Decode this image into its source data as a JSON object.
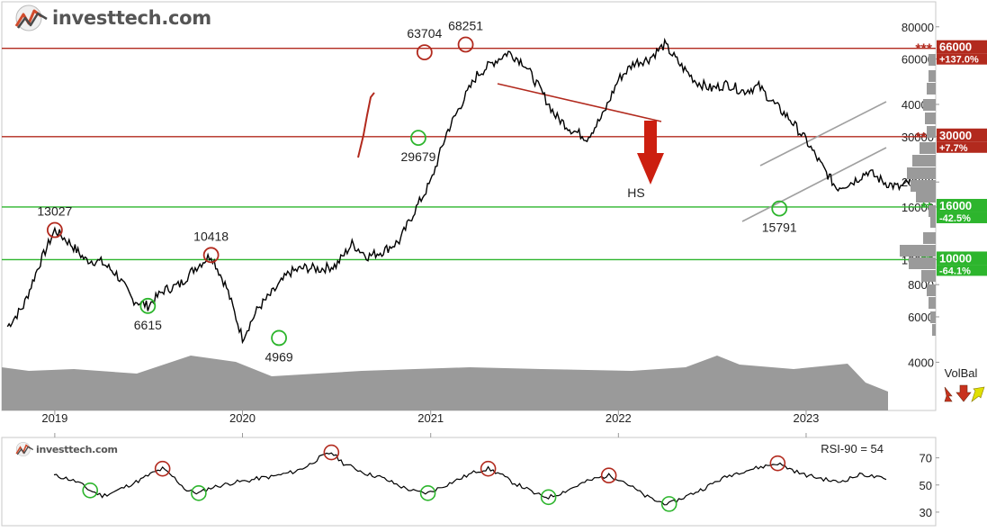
{
  "brand": {
    "name": "investtech.com",
    "name_part1": "invest",
    "name_part2": "tech",
    "name_part3": ".com"
  },
  "colors": {
    "price_line": "#000000",
    "resistance": "#b22a1e",
    "support": "#2db52d",
    "trend_channel": "#a0a0a0",
    "volume_fill": "#9a9a9a",
    "volbal_up": "#e0e000",
    "volbal_down": "#c8321e",
    "hs_arrow": "#cc1f10"
  },
  "chart_data": [
    {
      "type": "line",
      "scale": "log",
      "yticks": [
        "80000",
        "60000",
        "40000",
        "30000",
        "20000",
        "16000",
        "10000",
        "8000",
        "6000",
        "4000"
      ],
      "ylim": [
        2600,
        100000
      ],
      "xticks": [
        "2019",
        "2020",
        "2021",
        "2022",
        "2023"
      ],
      "price_series": {
        "dates": [
          "2018-10-01",
          "2018-11-01",
          "2018-12-01",
          "2019-01-01",
          "2019-02-01",
          "2019-03-01",
          "2019-04-01",
          "2019-05-01",
          "2019-06-01",
          "2019-07-01",
          "2019-08-01",
          "2019-09-01",
          "2019-10-01",
          "2019-11-01",
          "2019-12-01",
          "2020-01-01",
          "2020-02-01",
          "2020-03-01",
          "2020-04-01",
          "2020-05-01",
          "2020-06-01",
          "2020-07-01",
          "2020-08-01",
          "2020-09-01",
          "2020-10-01",
          "2020-11-01",
          "2020-12-01",
          "2021-01-01",
          "2021-02-01",
          "2021-03-01",
          "2021-04-01",
          "2021-05-01",
          "2021-06-01",
          "2021-07-01",
          "2021-08-01",
          "2021-09-01",
          "2021-10-01",
          "2021-11-01",
          "2021-12-01",
          "2022-01-01",
          "2022-02-01",
          "2022-03-01",
          "2022-04-01",
          "2022-05-01",
          "2022-06-01",
          "2022-07-01",
          "2022-08-01",
          "2022-09-01",
          "2022-10-01",
          "2022-11-01",
          "2022-12-01",
          "2023-01-01",
          "2023-02-01",
          "2023-03-01",
          "2023-04-01",
          "2023-05-01",
          "2023-06-01",
          "2023-07-01",
          "2023-08-01"
        ],
        "values": [
          5500,
          6600,
          9500,
          13027,
          11500,
          10000,
          9800,
          8800,
          7000,
          6615,
          7600,
          8000,
          9300,
          10418,
          7800,
          4969,
          6500,
          7500,
          8900,
          9300,
          9200,
          9500,
          11500,
          10300,
          10800,
          11800,
          15500,
          20000,
          31000,
          40000,
          52000,
          58000,
          63704,
          58000,
          46000,
          36000,
          32000,
          29679,
          36000,
          50000,
          58000,
          60000,
          68251,
          57000,
          49000,
          46000,
          48000,
          45000,
          47000,
          40000,
          35000,
          29000,
          23000,
          19000,
          20000,
          22000,
          20000,
          19000,
          20500
        ]
      },
      "annotations": [
        {
          "label": "13027",
          "date": "2019-01-01",
          "value": 13027,
          "kind": "top"
        },
        {
          "label": "10418",
          "date": "2019-11-01",
          "value": 10418,
          "kind": "top"
        },
        {
          "label": "6615",
          "date": "2019-07-01",
          "value": 6615,
          "kind": "bottom"
        },
        {
          "label": "4969",
          "date": "2020-03-12",
          "value": 4969,
          "kind": "bottom"
        },
        {
          "label": "63704",
          "date": "2020-12-20",
          "value": 63704,
          "kind": "top"
        },
        {
          "label": "68251",
          "date": "2021-03-10",
          "value": 68251,
          "kind": "top"
        },
        {
          "label": "29679",
          "date": "2020-12-08",
          "value": 29679,
          "kind": "bottom"
        },
        {
          "label": "15791",
          "date": "2022-11-10",
          "value": 15791,
          "kind": "bottom"
        }
      ],
      "levels": [
        {
          "price": "66000",
          "pct": "+137.0%",
          "stars": "***",
          "kind": "resistance"
        },
        {
          "price": "30000",
          "pct": "+7.7%",
          "stars": "***",
          "kind": "resistance"
        },
        {
          "price": "16000",
          "pct": "-42.5%",
          "stars": "**",
          "kind": "support"
        },
        {
          "price": "10000",
          "pct": "-64.1%",
          "stars": "**",
          "kind": "support"
        }
      ],
      "pattern_label": "HS",
      "volbal_label": "VolBal",
      "volbal_arrows": [
        "down-left",
        "down",
        "up-right"
      ]
    },
    {
      "type": "line",
      "indicator": "RSI",
      "rsi_label": "RSI-90 = 54",
      "yticks": [
        "70",
        "50",
        "30"
      ],
      "ylim": [
        20,
        85
      ],
      "values": [
        57,
        55,
        52,
        46,
        42,
        45,
        49,
        53,
        58,
        62,
        55,
        46,
        44,
        48,
        50,
        52,
        53,
        55,
        56,
        58,
        60,
        64,
        70,
        74,
        66,
        62,
        58,
        56,
        52,
        48,
        45,
        44,
        48,
        52,
        56,
        60,
        62,
        58,
        52,
        48,
        43,
        41,
        44,
        48,
        52,
        55,
        57,
        54,
        48,
        42,
        38,
        36,
        40,
        44,
        48,
        53,
        57,
        60,
        62,
        64,
        66,
        62,
        58,
        56,
        54,
        52,
        55,
        58,
        56,
        54
      ]
    }
  ]
}
